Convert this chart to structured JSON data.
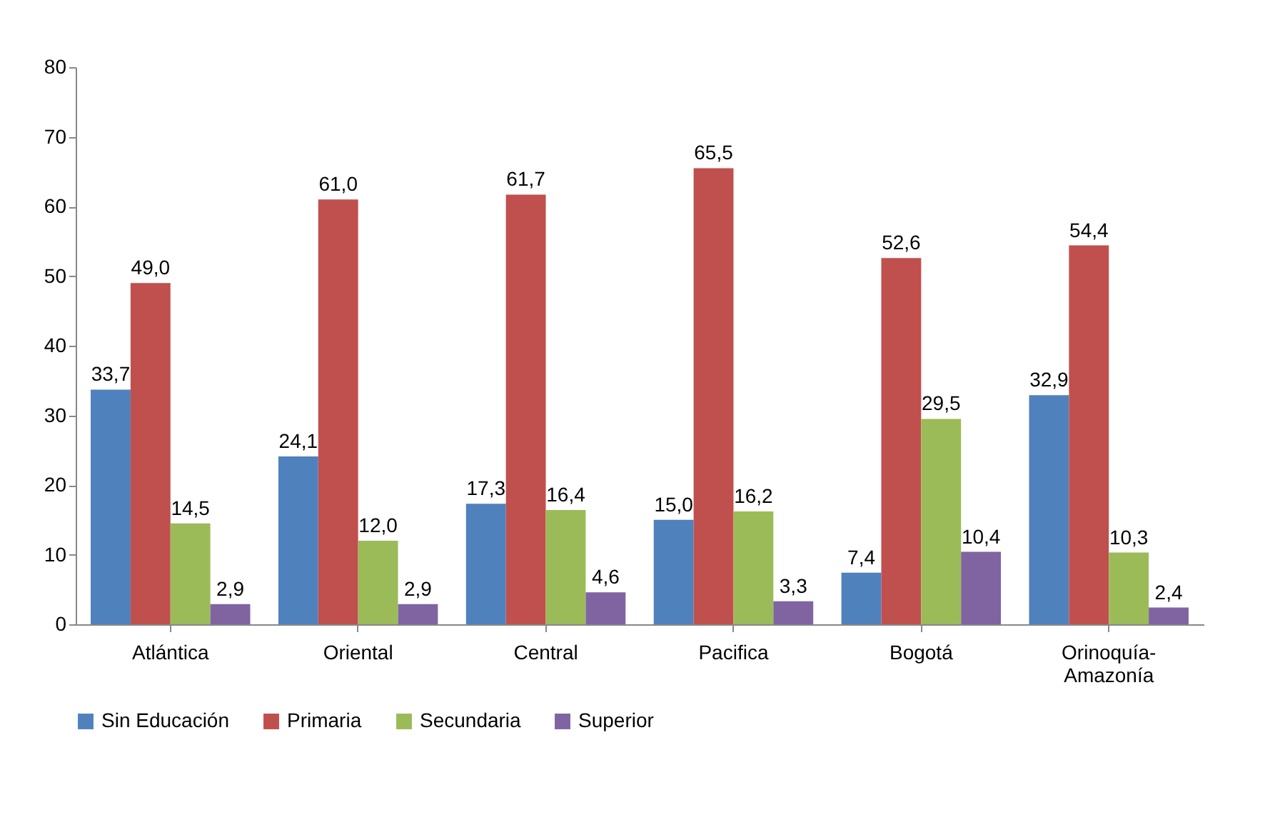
{
  "chart_data": {
    "type": "bar",
    "categories": [
      "Atlántica",
      "Oriental",
      "Central",
      "Pacifica",
      "Bogotá",
      "Orinoquía-Amazonía"
    ],
    "series": [
      {
        "name": "Sin Educación",
        "color": "#4f81bd",
        "values": [
          33.7,
          24.1,
          17.3,
          15.0,
          7.4,
          32.9
        ],
        "value_labels": [
          "33,7",
          "24,1",
          "17,3",
          "15,0",
          "7,4",
          "32,9"
        ]
      },
      {
        "name": "Primaria",
        "color": "#c0504d",
        "values": [
          49.0,
          61.0,
          61.7,
          65.5,
          52.6,
          54.4
        ],
        "value_labels": [
          "49,0",
          "61,0",
          "61,7",
          "65,5",
          "52,6",
          "54,4"
        ]
      },
      {
        "name": "Secundaria",
        "color": "#9bbb59",
        "values": [
          14.5,
          12.0,
          16.4,
          16.2,
          29.5,
          10.3
        ],
        "value_labels": [
          "14,5",
          "12,0",
          "16,4",
          "16,2",
          "29,5",
          "10,3"
        ]
      },
      {
        "name": "Superior",
        "color": "#8064a2",
        "values": [
          2.9,
          2.9,
          4.6,
          3.3,
          10.4,
          2.4
        ],
        "value_labels": [
          "2,9",
          "2,9",
          "4,6",
          "3,3",
          "10,4",
          "2,4"
        ]
      }
    ],
    "ylim": [
      0,
      80
    ],
    "yticks": [
      0,
      10,
      20,
      30,
      40,
      50,
      60,
      70,
      80
    ],
    "grid": false,
    "legend": "bottom"
  }
}
